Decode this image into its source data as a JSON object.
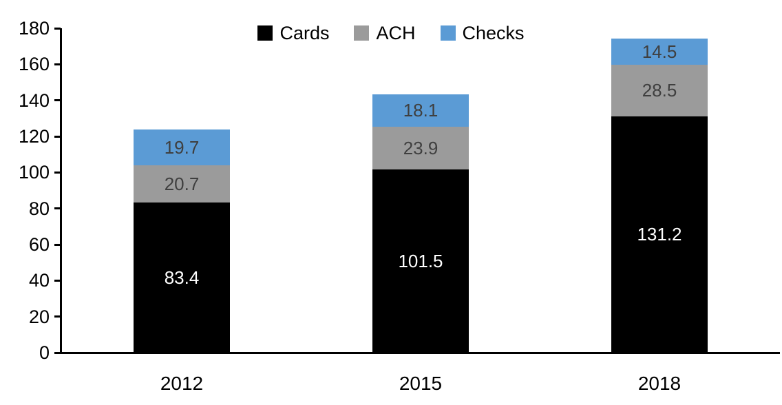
{
  "chart_data": {
    "type": "bar",
    "stacked": true,
    "title": "",
    "xlabel": "",
    "ylabel": "",
    "categories": [
      "2012",
      "2015",
      "2018"
    ],
    "series": [
      {
        "name": "Cards",
        "color": "#000000",
        "label_color": "#ffffff",
        "values": [
          83.4,
          101.5,
          131.2
        ]
      },
      {
        "name": "ACH",
        "color": "#9B9B9B",
        "label_color": "#3F3F3F",
        "values": [
          20.7,
          23.9,
          28.5
        ]
      },
      {
        "name": "Checks",
        "color": "#5B9BD5",
        "label_color": "#3F3F3F",
        "values": [
          19.7,
          18.1,
          14.5
        ]
      }
    ],
    "totals": [
      123.8,
      143.5,
      174.2
    ],
    "ylim": [
      0,
      180
    ],
    "ytick_step": 20,
    "yticks": [
      0,
      20,
      40,
      60,
      80,
      100,
      120,
      140,
      160,
      180
    ],
    "grid": false,
    "legend_position": "top-center",
    "axis_color": "#000000",
    "background_color": "#ffffff"
  }
}
